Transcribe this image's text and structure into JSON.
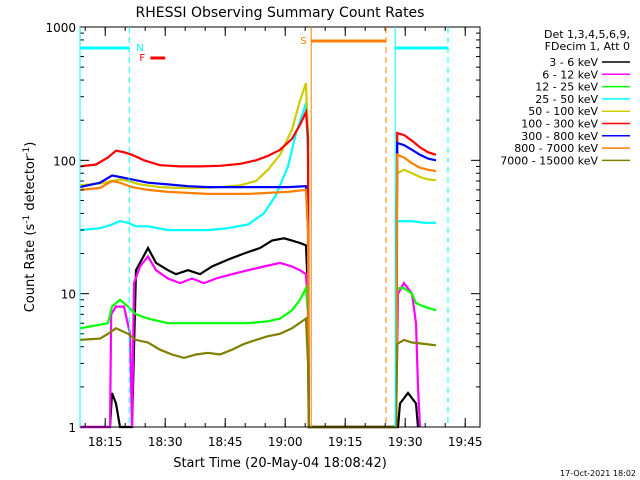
{
  "chart_data": {
    "type": "line",
    "title": "RHESSI Observing Summary Count Rates",
    "xlabel": "Start Time (20-May-04 18:08:42)",
    "ylabel_main": "Count Rate (s",
    "ylabel_sup1": "-1",
    "ylabel_mid": " detector",
    "ylabel_sup2": "-1",
    "ylabel_end": ")",
    "yscale": "log",
    "ylim": [
      1,
      1000
    ],
    "xlim_minutes": [
      0,
      100
    ],
    "x_ticks": [
      {
        "label": "18:15",
        "minutes": 6.3
      },
      {
        "label": "18:30",
        "minutes": 21.3
      },
      {
        "label": "18:45",
        "minutes": 36.3
      },
      {
        "label": "19:00",
        "minutes": 51.3
      },
      {
        "label": "19:15",
        "minutes": 66.3
      },
      {
        "label": "19:30",
        "minutes": 81.3
      },
      {
        "label": "19:45",
        "minutes": 96.3
      }
    ],
    "y_ticks": [
      {
        "label": "1",
        "value": 1
      },
      {
        "label": "10",
        "value": 10
      },
      {
        "label": "100",
        "value": 100
      },
      {
        "label": "1000",
        "value": 1000
      }
    ],
    "legend_header": [
      "Det 1,3,4,5,6,9,",
      "FDecim 1, Att 0"
    ],
    "series": [
      {
        "name": "3 - 6 keV",
        "color": "#000000",
        "points": [
          [
            0,
            1
          ],
          [
            7.5,
            1
          ],
          [
            8,
            1.8
          ],
          [
            9,
            1.5
          ],
          [
            10,
            1
          ],
          [
            13,
            1
          ],
          [
            14,
            15
          ],
          [
            15,
            17
          ],
          [
            17,
            22
          ],
          [
            19,
            17
          ],
          [
            22,
            15
          ],
          [
            24,
            14
          ],
          [
            27,
            15
          ],
          [
            30,
            14
          ],
          [
            33,
            16
          ],
          [
            37,
            18
          ],
          [
            41,
            20
          ],
          [
            45,
            22
          ],
          [
            48,
            25
          ],
          [
            51,
            26
          ],
          [
            53,
            25
          ],
          [
            55,
            24
          ],
          [
            56.5,
            23
          ],
          [
            57,
            10
          ],
          [
            57.2,
            1
          ],
          [
            79.5,
            1
          ],
          [
            80,
            1.5
          ],
          [
            82,
            1.8
          ],
          [
            84,
            1.5
          ],
          [
            84.5,
            1
          ]
        ]
      },
      {
        "name": "6 - 12 keV",
        "color": "#ff00ff",
        "points": [
          [
            0,
            1
          ],
          [
            7.5,
            1
          ],
          [
            7.8,
            7
          ],
          [
            9,
            8
          ],
          [
            11,
            8
          ],
          [
            12.5,
            5
          ],
          [
            13,
            1
          ],
          [
            13.5,
            12
          ],
          [
            15,
            16
          ],
          [
            17,
            19
          ],
          [
            19,
            15
          ],
          [
            22,
            13
          ],
          [
            25,
            12
          ],
          [
            28,
            13
          ],
          [
            31,
            12
          ],
          [
            34,
            13
          ],
          [
            38,
            14
          ],
          [
            42,
            15
          ],
          [
            46,
            16
          ],
          [
            50,
            17
          ],
          [
            53,
            16
          ],
          [
            55,
            15
          ],
          [
            56.5,
            14
          ],
          [
            57,
            8
          ],
          [
            57.2,
            1
          ],
          [
            79,
            1
          ],
          [
            79.5,
            10
          ],
          [
            81,
            12
          ],
          [
            83,
            10
          ],
          [
            84,
            6
          ],
          [
            84.5,
            2
          ],
          [
            85,
            1
          ]
        ]
      },
      {
        "name": "12 - 25 keV",
        "color": "#00ff00",
        "points": [
          [
            0,
            5.5
          ],
          [
            7,
            6
          ],
          [
            8,
            8
          ],
          [
            10,
            9
          ],
          [
            12,
            8
          ],
          [
            14,
            7
          ],
          [
            17,
            6.5
          ],
          [
            22,
            6
          ],
          [
            27,
            6
          ],
          [
            32,
            6
          ],
          [
            37,
            6
          ],
          [
            42,
            6
          ],
          [
            47,
            6.2
          ],
          [
            50,
            6.5
          ],
          [
            53,
            7.5
          ],
          [
            55,
            9
          ],
          [
            56.5,
            11
          ],
          [
            57,
            7
          ],
          [
            57.2,
            1
          ],
          [
            79,
            1
          ],
          [
            79.3,
            11
          ],
          [
            81,
            11
          ],
          [
            83,
            10
          ],
          [
            84,
            8.5
          ],
          [
            86,
            8
          ],
          [
            89,
            7.5
          ]
        ]
      },
      {
        "name": "25 - 50 keV",
        "color": "#00ffff",
        "points": [
          [
            0,
            30
          ],
          [
            5,
            31
          ],
          [
            8,
            33
          ],
          [
            10,
            35
          ],
          [
            12,
            34
          ],
          [
            14,
            32
          ],
          [
            17,
            32
          ],
          [
            22,
            30
          ],
          [
            27,
            30
          ],
          [
            32,
            30
          ],
          [
            37,
            31
          ],
          [
            42,
            33
          ],
          [
            46,
            40
          ],
          [
            49,
            55
          ],
          [
            52,
            90
          ],
          [
            54,
            160
          ],
          [
            56,
            240
          ],
          [
            56.5,
            270
          ],
          [
            57,
            100
          ],
          [
            57.2,
            1
          ],
          [
            79,
            1
          ],
          [
            79.3,
            35
          ],
          [
            81,
            35
          ],
          [
            83,
            35
          ],
          [
            86,
            34
          ],
          [
            89,
            34
          ]
        ]
      },
      {
        "name": "50 - 100 keV",
        "color": "#cccc00",
        "points": [
          [
            0,
            65
          ],
          [
            5,
            67
          ],
          [
            8,
            70
          ],
          [
            10,
            72
          ],
          [
            12,
            70
          ],
          [
            15,
            66
          ],
          [
            20,
            63
          ],
          [
            25,
            62
          ],
          [
            30,
            62
          ],
          [
            35,
            63
          ],
          [
            40,
            65
          ],
          [
            44,
            70
          ],
          [
            47,
            85
          ],
          [
            50,
            110
          ],
          [
            53,
            170
          ],
          [
            55,
            280
          ],
          [
            56.5,
            380
          ],
          [
            57,
            150
          ],
          [
            57.2,
            1
          ],
          [
            79,
            1
          ],
          [
            79.3,
            80
          ],
          [
            81,
            85
          ],
          [
            83,
            80
          ],
          [
            85,
            75
          ],
          [
            87,
            72
          ],
          [
            89,
            71
          ]
        ]
      },
      {
        "name": "100 - 300 keV",
        "color": "#ff0000",
        "points": [
          [
            0,
            90
          ],
          [
            4,
            93
          ],
          [
            7,
            105
          ],
          [
            9,
            118
          ],
          [
            11,
            115
          ],
          [
            13,
            110
          ],
          [
            16,
            100
          ],
          [
            20,
            92
          ],
          [
            25,
            90
          ],
          [
            30,
            90
          ],
          [
            35,
            91
          ],
          [
            40,
            94
          ],
          [
            44,
            100
          ],
          [
            47,
            108
          ],
          [
            50,
            120
          ],
          [
            53,
            145
          ],
          [
            55,
            185
          ],
          [
            56.5,
            230
          ],
          [
            57,
            150
          ],
          [
            57.2,
            1
          ],
          [
            79,
            1
          ],
          [
            79.3,
            160
          ],
          [
            81,
            155
          ],
          [
            83,
            140
          ],
          [
            85,
            125
          ],
          [
            87,
            115
          ],
          [
            89,
            110
          ]
        ]
      },
      {
        "name": "300 - 800 keV",
        "color": "#0000ff",
        "points": [
          [
            0,
            63
          ],
          [
            5,
            68
          ],
          [
            8,
            77
          ],
          [
            10,
            75
          ],
          [
            13,
            72
          ],
          [
            17,
            68
          ],
          [
            22,
            66
          ],
          [
            27,
            64
          ],
          [
            32,
            63
          ],
          [
            37,
            63
          ],
          [
            42,
            63
          ],
          [
            47,
            63
          ],
          [
            52,
            63
          ],
          [
            56.5,
            64
          ],
          [
            57,
            30
          ],
          [
            57.2,
            1
          ],
          [
            79,
            1
          ],
          [
            79.3,
            135
          ],
          [
            81,
            130
          ],
          [
            83,
            120
          ],
          [
            85,
            110
          ],
          [
            87,
            103
          ],
          [
            89,
            100
          ]
        ]
      },
      {
        "name": "800 - 7000 keV",
        "color": "#ff8000",
        "points": [
          [
            0,
            60
          ],
          [
            5,
            62
          ],
          [
            8,
            70
          ],
          [
            10,
            68
          ],
          [
            13,
            63
          ],
          [
            17,
            60
          ],
          [
            22,
            58
          ],
          [
            27,
            57
          ],
          [
            32,
            56
          ],
          [
            37,
            56
          ],
          [
            42,
            56
          ],
          [
            47,
            57
          ],
          [
            52,
            58
          ],
          [
            56.5,
            60
          ],
          [
            57,
            30
          ],
          [
            57.2,
            1
          ],
          [
            79,
            1
          ],
          [
            79.3,
            110
          ],
          [
            81,
            105
          ],
          [
            83,
            95
          ],
          [
            85,
            88
          ],
          [
            87,
            85
          ],
          [
            89,
            83
          ]
        ]
      },
      {
        "name": "7000 - 15000 keV",
        "color": "#808000",
        "points": [
          [
            0,
            4.5
          ],
          [
            5,
            4.6
          ],
          [
            7,
            5
          ],
          [
            9,
            5.5
          ],
          [
            12,
            5
          ],
          [
            14,
            4.5
          ],
          [
            17,
            4.3
          ],
          [
            20,
            3.8
          ],
          [
            23,
            3.5
          ],
          [
            26,
            3.3
          ],
          [
            29,
            3.5
          ],
          [
            32,
            3.6
          ],
          [
            35,
            3.5
          ],
          [
            38,
            3.8
          ],
          [
            41,
            4.2
          ],
          [
            44,
            4.5
          ],
          [
            47,
            4.8
          ],
          [
            50,
            5
          ],
          [
            53,
            5.5
          ],
          [
            56.5,
            6.5
          ],
          [
            57,
            3
          ],
          [
            57.2,
            1
          ],
          [
            79,
            1
          ],
          [
            79.3,
            4.2
          ],
          [
            81,
            4.5
          ],
          [
            83,
            4.3
          ],
          [
            86,
            4.2
          ],
          [
            89,
            4.1
          ]
        ]
      }
    ],
    "annotations": [
      {
        "label": "N",
        "color": "#00ffff",
        "description": "night interval bars"
      },
      {
        "label": "F",
        "color": "#ff0000",
        "description": "flare marker"
      },
      {
        "label": "S",
        "color": "#ff8000",
        "description": "SAA interval"
      }
    ],
    "night_intervals": [
      [
        0,
        12.3
      ],
      [
        78.8,
        92
      ]
    ],
    "flare_interval": [
      17.6,
      21.3
    ],
    "saa_interval": [
      57.8,
      76.5
    ],
    "timestamp": "17-Oct-2021 18:02"
  }
}
